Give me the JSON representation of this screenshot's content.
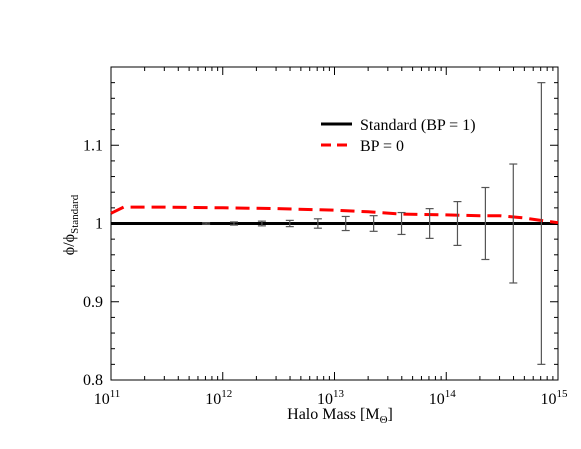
{
  "chart_data": {
    "type": "line",
    "title": "",
    "xscale": "log",
    "xlim": [
      100000000000.0,
      1000000000000000.0
    ],
    "ylim": [
      0.8,
      1.2
    ],
    "x_tick_labels": [
      {
        "value": 100000000000.0,
        "base": "10",
        "exp": "11"
      },
      {
        "value": 1000000000000.0,
        "base": "10",
        "exp": "12"
      },
      {
        "value": 10000000000000.0,
        "base": "10",
        "exp": "13"
      },
      {
        "value": 100000000000000.0,
        "base": "10",
        "exp": "14"
      },
      {
        "value": 1000000000000000.0,
        "base": "10",
        "exp": "15"
      }
    ],
    "y_ticks": [
      0.8,
      0.9,
      1.0,
      1.1
    ],
    "y_tick_labels": [
      "0.8",
      "0.9",
      "1",
      "1.1"
    ],
    "xlabel": {
      "main": "Halo Mass [M",
      "sub": "Θ",
      "close": "]"
    },
    "ylabel": {
      "main": "ϕ/ϕ",
      "sub": "Standard"
    },
    "legend": {
      "placement": "top-right"
    },
    "series": [
      {
        "name": "Standard (BP = 1)",
        "color": "#000000",
        "style": "solid",
        "x": [
          100000000000.0,
          1000000000000000.0
        ],
        "y": [
          1.0,
          1.0
        ]
      },
      {
        "name": "BP = 0",
        "color": "#ff0000",
        "style": "dashed",
        "x": [
          100000000000.0,
          130000000000.0,
          300000000000.0,
          1000000000000.0,
          3000000000000.0,
          10000000000000.0,
          20000000000000.0,
          40000000000000.0,
          100000000000000.0,
          200000000000000.0,
          300000000000000.0,
          500000000000000.0,
          700000000000000.0,
          1000000000000000.0
        ],
        "y": [
          1.013,
          1.021,
          1.021,
          1.02,
          1.019,
          1.017,
          1.015,
          1.012,
          1.011,
          1.01,
          1.01,
          1.007,
          1.004,
          1.001
        ]
      }
    ],
    "error_bars": {
      "color": "#555555",
      "points": [
        {
          "x": 710000000000.0,
          "y": 1.0,
          "err": 0.001
        },
        {
          "x": 1260000000000.0,
          "y": 1.0,
          "err": 0.002
        },
        {
          "x": 2240000000000.0,
          "y": 1.0,
          "err": 0.003
        },
        {
          "x": 3980000000000.0,
          "y": 1.0,
          "err": 0.004
        },
        {
          "x": 7100000000000.0,
          "y": 1.0,
          "err": 0.006
        },
        {
          "x": 12600000000000.0,
          "y": 1.0,
          "err": 0.009
        },
        {
          "x": 22400000000000.0,
          "y": 1.0,
          "err": 0.01
        },
        {
          "x": 39800000000000.0,
          "y": 1.0,
          "err": 0.014
        },
        {
          "x": 71000000000000.0,
          "y": 1.0,
          "err": 0.019
        },
        {
          "x": 126000000000000.0,
          "y": 1.0,
          "err": 0.028
        },
        {
          "x": 224000000000000.0,
          "y": 1.0,
          "err": 0.046
        },
        {
          "x": 398000000000000.0,
          "y": 1.0,
          "err": 0.076
        },
        {
          "x": 710000000000000.0,
          "y": 1.0,
          "err": 0.18
        }
      ]
    }
  }
}
